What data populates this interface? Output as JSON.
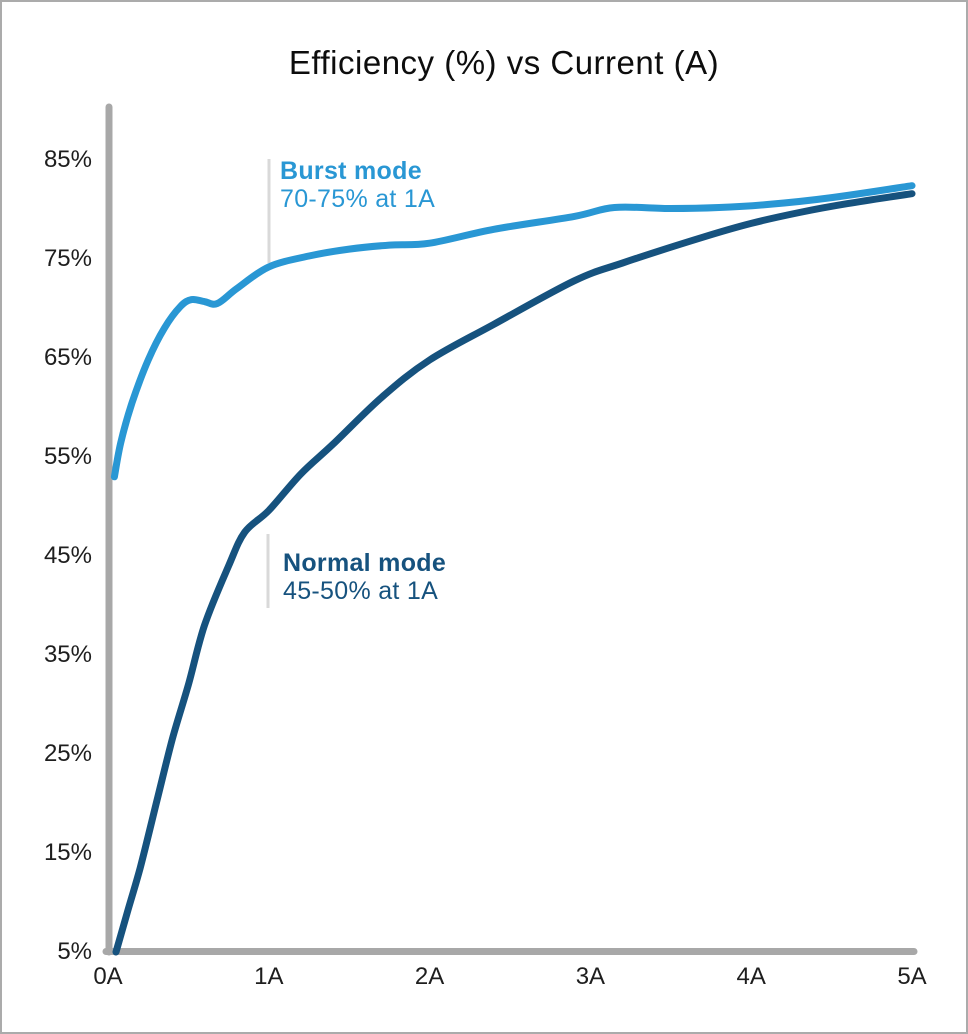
{
  "chart_data": {
    "type": "line",
    "title": "Efficiency (%) vs Current (A)",
    "xlabel": "",
    "ylabel": "",
    "xlim": [
      0,
      5
    ],
    "ylim": [
      5,
      85
    ],
    "grid": false,
    "legend_position": "inline-annotations",
    "x_ticks": [
      {
        "value": 0,
        "label": "0A"
      },
      {
        "value": 1,
        "label": "1A"
      },
      {
        "value": 2,
        "label": "2A"
      },
      {
        "value": 3,
        "label": "3A"
      },
      {
        "value": 4,
        "label": "4A"
      },
      {
        "value": 5,
        "label": "5A"
      }
    ],
    "y_ticks": [
      {
        "value": 5,
        "label": "5%"
      },
      {
        "value": 15,
        "label": "15%"
      },
      {
        "value": 25,
        "label": "25%"
      },
      {
        "value": 35,
        "label": "35%"
      },
      {
        "value": 45,
        "label": "45%"
      },
      {
        "value": 55,
        "label": "55%"
      },
      {
        "value": 65,
        "label": "65%"
      },
      {
        "value": 75,
        "label": "75%"
      },
      {
        "value": 85,
        "label": "85%"
      }
    ],
    "series": [
      {
        "name": "Burst mode",
        "color": "#2997D4",
        "annotation": {
          "title": "Burst mode",
          "subtitle": "70-75% at 1A"
        },
        "points": [
          [
            0.04,
            53
          ],
          [
            0.08,
            56.5
          ],
          [
            0.15,
            60.5
          ],
          [
            0.25,
            64.8
          ],
          [
            0.35,
            68
          ],
          [
            0.45,
            70.2
          ],
          [
            0.52,
            70.9
          ],
          [
            0.6,
            70.7
          ],
          [
            0.68,
            70.5
          ],
          [
            0.8,
            72
          ],
          [
            1,
            74.2
          ],
          [
            1.25,
            75.3
          ],
          [
            1.5,
            76
          ],
          [
            1.75,
            76.4
          ],
          [
            2,
            76.6
          ],
          [
            2.4,
            78
          ],
          [
            2.9,
            79.3
          ],
          [
            3.15,
            80.2
          ],
          [
            3.5,
            80.1
          ],
          [
            3.8,
            80.2
          ],
          [
            4.1,
            80.5
          ],
          [
            4.5,
            81.2
          ],
          [
            5,
            82.4
          ]
        ]
      },
      {
        "name": "Normal mode",
        "color": "#16527E",
        "annotation": {
          "title": "Normal mode",
          "subtitle": "45-50% at 1A"
        },
        "points": [
          [
            0.05,
            5
          ],
          [
            0.12,
            9
          ],
          [
            0.2,
            13.5
          ],
          [
            0.3,
            20
          ],
          [
            0.4,
            26.5
          ],
          [
            0.5,
            32
          ],
          [
            0.6,
            38
          ],
          [
            0.75,
            44
          ],
          [
            0.85,
            47.4
          ],
          [
            1,
            49.6
          ],
          [
            1.2,
            53.3
          ],
          [
            1.4,
            56.3
          ],
          [
            1.7,
            61
          ],
          [
            2,
            64.8
          ],
          [
            2.4,
            68.4
          ],
          [
            2.9,
            72.8
          ],
          [
            3.2,
            74.6
          ],
          [
            3.7,
            77.2
          ],
          [
            4,
            78.6
          ],
          [
            4.3,
            79.7
          ],
          [
            4.6,
            80.6
          ],
          [
            5,
            81.6
          ]
        ]
      }
    ],
    "colors": {
      "axis": "#A8A8A8",
      "leader_line": "#D9D9D9",
      "title_text": "#0D0D0D",
      "tick_text": "#1E1E1E",
      "frame_border": "#ABABAB",
      "background": "#FFFFFF"
    }
  }
}
